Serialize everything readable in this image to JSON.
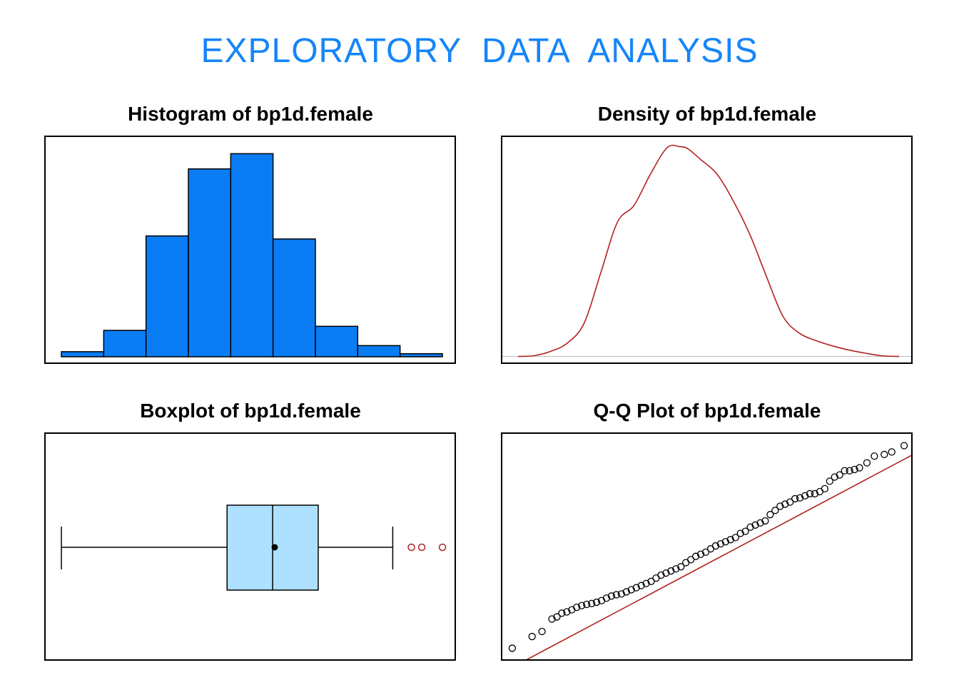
{
  "page": {
    "title": "EXPLORATORY  DATA  ANALYSIS",
    "title_color": "#1685F8"
  },
  "colors": {
    "hist_fill": "#0A7DF5",
    "box_fill": "#AEE0FF",
    "curve": "#B22222",
    "outlier": "#B22222",
    "baseline": "#BEBEBE"
  },
  "chart_data": [
    {
      "type": "bar",
      "title": "Histogram of bp1d.female",
      "bins": [
        1,
        2,
        3,
        4,
        5,
        6,
        7,
        8,
        9
      ],
      "values": [
        2.5,
        13,
        59.5,
        92.5,
        100,
        58,
        15,
        5.5,
        1.5
      ],
      "ylim": [
        0,
        104
      ],
      "xlabel": "",
      "ylabel": ""
    },
    {
      "type": "line",
      "title": "Density of bp1d.female",
      "x": [
        0,
        2,
        4,
        6,
        8,
        10,
        12,
        14,
        16,
        18,
        19.5,
        20.5,
        22,
        24,
        26,
        28,
        30,
        32,
        34,
        36,
        38,
        40,
        42,
        44,
        46
      ],
      "y": [
        0,
        0.4,
        2.5,
        6.5,
        16,
        40,
        64,
        72,
        87,
        99.5,
        100,
        99,
        94,
        87,
        74,
        58,
        38,
        19,
        11,
        7.5,
        5,
        3,
        1.5,
        0.3,
        0
      ],
      "xlim": [
        0,
        46
      ],
      "ylim": [
        -0.5,
        100.5
      ],
      "xlabel": "",
      "ylabel": ""
    },
    {
      "type": "box",
      "title": "Boxplot of bp1d.female",
      "whisker_low": 0,
      "q1": 40,
      "median": 51,
      "mean": 51.5,
      "q3": 62,
      "whisker_high": 80,
      "outliers": [
        84.5,
        87,
        92
      ],
      "xlim": [
        -3.8,
        95.6
      ]
    },
    {
      "type": "scatter",
      "title": "Q-Q Plot of bp1d.female",
      "points": [
        [
          -2.8,
          -2.7
        ],
        [
          -2.4,
          -2.42
        ],
        [
          -2.2,
          -2.3
        ],
        [
          -2.0,
          -2.0
        ],
        [
          -1.9,
          -1.95
        ],
        [
          -1.8,
          -1.86
        ],
        [
          -1.7,
          -1.83
        ],
        [
          -1.6,
          -1.78
        ],
        [
          -1.5,
          -1.72
        ],
        [
          -1.4,
          -1.68
        ],
        [
          -1.3,
          -1.65
        ],
        [
          -1.2,
          -1.63
        ],
        [
          -1.1,
          -1.6
        ],
        [
          -1.0,
          -1.56
        ],
        [
          -0.9,
          -1.5
        ],
        [
          -0.8,
          -1.45
        ],
        [
          -0.7,
          -1.42
        ],
        [
          -0.6,
          -1.4
        ],
        [
          -0.5,
          -1.35
        ],
        [
          -0.4,
          -1.3
        ],
        [
          -0.3,
          -1.25
        ],
        [
          -0.2,
          -1.2
        ],
        [
          -0.1,
          -1.15
        ],
        [
          0.0,
          -1.1
        ],
        [
          0.1,
          -1.02
        ],
        [
          0.2,
          -0.95
        ],
        [
          0.3,
          -0.9
        ],
        [
          0.4,
          -0.85
        ],
        [
          0.5,
          -0.8
        ],
        [
          0.6,
          -0.75
        ],
        [
          0.7,
          -0.65
        ],
        [
          0.8,
          -0.58
        ],
        [
          0.9,
          -0.5
        ],
        [
          1.0,
          -0.45
        ],
        [
          1.1,
          -0.4
        ],
        [
          1.2,
          -0.32
        ],
        [
          1.3,
          -0.25
        ],
        [
          1.4,
          -0.2
        ],
        [
          1.5,
          -0.15
        ],
        [
          1.6,
          -0.1
        ],
        [
          1.7,
          -0.05
        ],
        [
          1.8,
          0.05
        ],
        [
          1.9,
          0.1
        ],
        [
          2.0,
          0.2
        ],
        [
          2.1,
          0.25
        ],
        [
          2.2,
          0.3
        ],
        [
          2.3,
          0.35
        ],
        [
          2.4,
          0.5
        ],
        [
          2.5,
          0.6
        ],
        [
          2.6,
          0.7
        ],
        [
          2.7,
          0.75
        ],
        [
          2.8,
          0.8
        ],
        [
          2.9,
          0.88
        ],
        [
          3.0,
          0.9
        ],
        [
          3.1,
          0.95
        ],
        [
          3.2,
          1.0
        ],
        [
          3.3,
          1.0
        ],
        [
          3.4,
          1.05
        ],
        [
          3.5,
          1.12
        ],
        [
          3.6,
          1.3
        ],
        [
          3.7,
          1.4
        ],
        [
          3.8,
          1.45
        ],
        [
          3.9,
          1.55
        ],
        [
          4.0,
          1.55
        ],
        [
          4.1,
          1.58
        ],
        [
          4.2,
          1.62
        ],
        [
          4.35,
          1.74
        ],
        [
          4.5,
          1.9
        ],
        [
          4.7,
          1.94
        ],
        [
          4.85,
          2.0
        ],
        [
          5.1,
          2.15
        ]
      ],
      "line": {
        "x0": -2.55,
        "y0": -3.0,
        "x1": 5.3,
        "y1": 1.95
      },
      "xlim": [
        -3.0,
        5.3
      ],
      "ylim": [
        -3.0,
        2.4
      ],
      "xlabel": "",
      "ylabel": ""
    }
  ]
}
